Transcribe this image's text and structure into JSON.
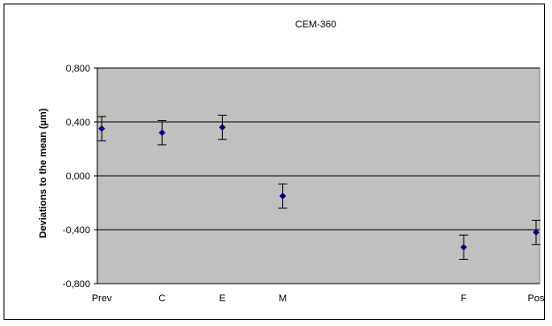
{
  "chart_data": {
    "type": "scatter",
    "title": "CEM-360",
    "xlabel": "",
    "ylabel": "Deviations to the mean (µm)",
    "categories": [
      "Prev",
      "C",
      "E",
      "M",
      "F",
      "Pos"
    ],
    "x_positions": [
      0,
      1,
      2,
      3,
      6,
      7.2
    ],
    "values": [
      0.35,
      0.32,
      0.36,
      -0.15,
      -0.53,
      -0.42
    ],
    "error": [
      0.09,
      0.09,
      0.09,
      0.09,
      0.09,
      0.09
    ],
    "ylim": [
      -0.8,
      0.8
    ],
    "yticks": [
      -0.8,
      -0.4,
      0.0,
      0.4,
      0.8
    ],
    "ytick_labels": [
      "-0,800",
      "-0,400",
      "0,000",
      "0,400",
      "0,800"
    ],
    "grid": true,
    "legend": "none",
    "colors": {
      "plot_background": "#c0c0c0",
      "marker": "#000080",
      "error_bar": "#000000",
      "gridline": "#000000"
    }
  }
}
